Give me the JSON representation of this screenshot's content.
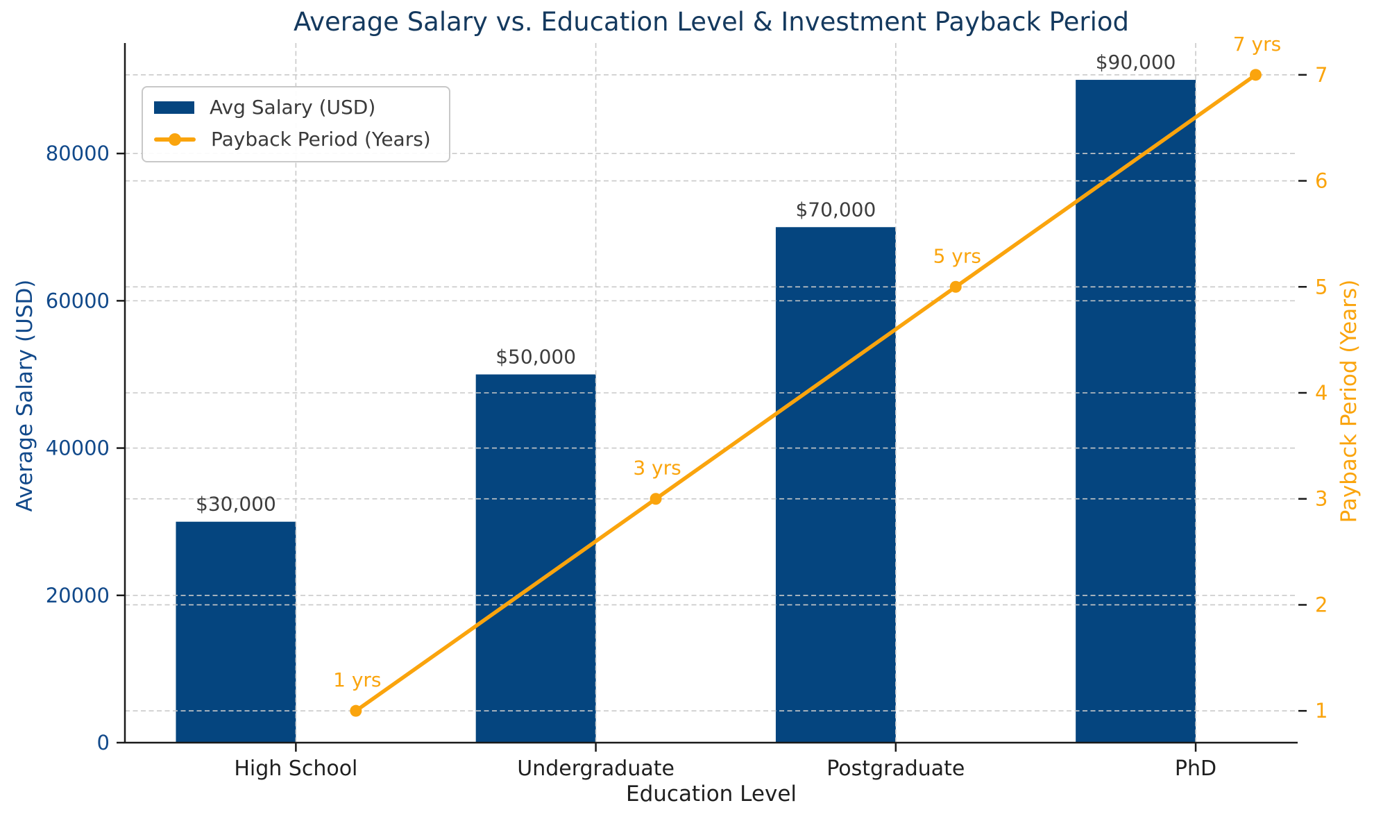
{
  "chart_data": {
    "type": "bar+line",
    "title": "Average Salary vs. Education Level & Investment Payback Period",
    "xlabel": "Education Level",
    "ylabel": "Average Salary (USD)",
    "y2label": "Payback Period (Years)",
    "categories": [
      "High School",
      "Undergraduate",
      "Postgraduate",
      "PhD"
    ],
    "series": [
      {
        "name": "Avg Salary (USD)",
        "type": "bar",
        "axis": "left",
        "values": [
          30000,
          50000,
          70000,
          90000
        ],
        "point_labels": [
          "$30,000",
          "$50,000",
          "$70,000",
          "$90,000"
        ],
        "color": "#05457F"
      },
      {
        "name": "Payback Period (Years)",
        "type": "line",
        "axis": "right",
        "values": [
          1,
          3,
          5,
          7
        ],
        "point_labels": [
          "1 yrs",
          "3 yrs",
          "5 yrs",
          "7 yrs"
        ],
        "color": "#FAA40D"
      }
    ],
    "y_ticks": [
      0,
      20000,
      40000,
      60000,
      80000
    ],
    "y_tick_labels": [
      "0",
      "20000",
      "40000",
      "60000",
      "80000"
    ],
    "y2_ticks": [
      1,
      2,
      3,
      4,
      5,
      6,
      7
    ],
    "y2_tick_labels": [
      "1",
      "2",
      "3",
      "4",
      "5",
      "6",
      "7"
    ],
    "ylim": [
      0,
      95000
    ],
    "y2lim": [
      0.7,
      7.3
    ],
    "xlim": [
      -0.57,
      3.34
    ],
    "grid": true,
    "grid_style": "dashed",
    "legend_position": "upper left"
  },
  "colors": {
    "bar": "#05457F",
    "line": "#FAA40D",
    "title": "#14395E",
    "left_axis_text": "#11498A",
    "right_axis_text": "#FAA40D",
    "x_tick_text": "#1f1f1f",
    "bar_label_text": "#3d3d3d",
    "legend_text": "#3a3a3a",
    "grid": "#c9c9c9",
    "spine": "#1a1a1a",
    "background": "#ffffff"
  }
}
